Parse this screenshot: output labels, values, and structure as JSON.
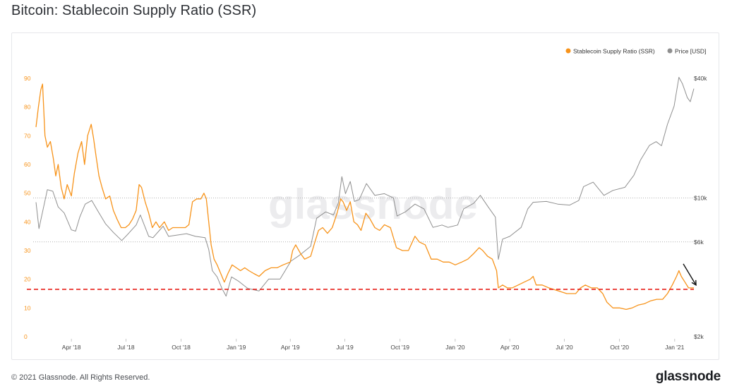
{
  "page": {
    "title": "Bitcoin: Stablecoin Supply Ratio (SSR)",
    "copyright": "© 2021 Glassnode. All Rights Reserved.",
    "brand": "glassnode",
    "watermark": "glassnode"
  },
  "colors": {
    "ssr": "#f7931a",
    "price": "#8f8f8f",
    "annotation_line": "#e8201a",
    "arrow": "#111111",
    "grid_dotted": "#999999",
    "left_tick_text": "#f7931a",
    "right_tick_text": "#444444"
  },
  "chart_data": {
    "type": "line",
    "title": "Bitcoin: Stablecoin Supply Ratio (SSR)",
    "xlabel": "",
    "ylabel_left": "",
    "ylabel_right": "",
    "x_range": [
      "2018-02-01",
      "2021-02-02"
    ],
    "x_ticks": [
      "Apr '18",
      "Jul '18",
      "Oct '18",
      "Jan '19",
      "Apr '19",
      "Jul '19",
      "Oct '19",
      "Jan '20",
      "Apr '20",
      "Jul '20",
      "Oct '20",
      "Jan '21"
    ],
    "y_left": {
      "ticks": [
        0,
        10,
        20,
        30,
        40,
        50,
        60,
        70,
        80,
        90
      ],
      "ylim": [
        0,
        90
      ]
    },
    "y_right": {
      "ticks": [
        "$2k",
        "$6k",
        "$10k",
        "$40k"
      ],
      "ylim": [
        2000,
        40000
      ],
      "scale": "log"
    },
    "legend": {
      "position": "top-right",
      "entries": [
        "Stablecoin Supply Ratio (SSR)",
        "Price [USD]"
      ]
    },
    "grid": "dotted horizontal reference lines",
    "annotations": [
      {
        "type": "horizontal dashed line",
        "axis": "left",
        "value": 16.5,
        "color": "red"
      },
      {
        "type": "arrow",
        "pointing_to": "latest SSR value"
      }
    ],
    "series": [
      {
        "name": "Stablecoin Supply Ratio (SSR)",
        "axis": "left",
        "points": [
          [
            "2018-02-01",
            73
          ],
          [
            "2018-02-05",
            80
          ],
          [
            "2018-02-09",
            86
          ],
          [
            "2018-02-12",
            88
          ],
          [
            "2018-02-16",
            70
          ],
          [
            "2018-02-20",
            66
          ],
          [
            "2018-02-25",
            68
          ],
          [
            "2018-03-02",
            62
          ],
          [
            "2018-03-06",
            56
          ],
          [
            "2018-03-10",
            60
          ],
          [
            "2018-03-15",
            52
          ],
          [
            "2018-03-20",
            48
          ],
          [
            "2018-03-25",
            53
          ],
          [
            "2018-04-01",
            49
          ],
          [
            "2018-04-06",
            57
          ],
          [
            "2018-04-12",
            64
          ],
          [
            "2018-04-18",
            68
          ],
          [
            "2018-04-23",
            60
          ],
          [
            "2018-04-28",
            70
          ],
          [
            "2018-05-04",
            74
          ],
          [
            "2018-05-08",
            69
          ],
          [
            "2018-05-12",
            63
          ],
          [
            "2018-05-17",
            56
          ],
          [
            "2018-05-22",
            52
          ],
          [
            "2018-05-28",
            48
          ],
          [
            "2018-06-04",
            49
          ],
          [
            "2018-06-10",
            44
          ],
          [
            "2018-06-16",
            41
          ],
          [
            "2018-06-23",
            38
          ],
          [
            "2018-06-30",
            38
          ],
          [
            "2018-07-06",
            39
          ],
          [
            "2018-07-12",
            41
          ],
          [
            "2018-07-18",
            44
          ],
          [
            "2018-07-23",
            53
          ],
          [
            "2018-07-27",
            52
          ],
          [
            "2018-08-02",
            47
          ],
          [
            "2018-08-08",
            43
          ],
          [
            "2018-08-14",
            38
          ],
          [
            "2018-08-20",
            40
          ],
          [
            "2018-08-26",
            38
          ],
          [
            "2018-09-03",
            40
          ],
          [
            "2018-09-10",
            37
          ],
          [
            "2018-09-17",
            38
          ],
          [
            "2018-09-24",
            38
          ],
          [
            "2018-10-01",
            38
          ],
          [
            "2018-10-08",
            38
          ],
          [
            "2018-10-14",
            39
          ],
          [
            "2018-10-20",
            47
          ],
          [
            "2018-10-27",
            48
          ],
          [
            "2018-11-03",
            48
          ],
          [
            "2018-11-08",
            50
          ],
          [
            "2018-11-12",
            48
          ],
          [
            "2018-11-16",
            40
          ],
          [
            "2018-11-20",
            32
          ],
          [
            "2018-11-25",
            27
          ],
          [
            "2018-11-30",
            25
          ],
          [
            "2018-12-06",
            22
          ],
          [
            "2018-12-12",
            19
          ],
          [
            "2018-12-18",
            22
          ],
          [
            "2018-12-25",
            25
          ],
          [
            "2019-01-01",
            24
          ],
          [
            "2019-01-08",
            23
          ],
          [
            "2019-01-15",
            24
          ],
          [
            "2019-01-22",
            23
          ],
          [
            "2019-01-30",
            22
          ],
          [
            "2019-02-08",
            21
          ],
          [
            "2019-02-18",
            23
          ],
          [
            "2019-02-28",
            24
          ],
          [
            "2019-03-10",
            24
          ],
          [
            "2019-03-20",
            25
          ],
          [
            "2019-04-01",
            26
          ],
          [
            "2019-04-05",
            30
          ],
          [
            "2019-04-10",
            32
          ],
          [
            "2019-04-18",
            29
          ],
          [
            "2019-04-25",
            27
          ],
          [
            "2019-05-05",
            28
          ],
          [
            "2019-05-12",
            33
          ],
          [
            "2019-05-18",
            37
          ],
          [
            "2019-05-25",
            38
          ],
          [
            "2019-06-02",
            36
          ],
          [
            "2019-06-10",
            38
          ],
          [
            "2019-06-18",
            43
          ],
          [
            "2019-06-24",
            48
          ],
          [
            "2019-06-28",
            47
          ],
          [
            "2019-07-04",
            44
          ],
          [
            "2019-07-10",
            47
          ],
          [
            "2019-07-16",
            40
          ],
          [
            "2019-07-22",
            39
          ],
          [
            "2019-07-28",
            37
          ],
          [
            "2019-08-05",
            43
          ],
          [
            "2019-08-12",
            41
          ],
          [
            "2019-08-20",
            38
          ],
          [
            "2019-08-28",
            37
          ],
          [
            "2019-09-05",
            39
          ],
          [
            "2019-09-15",
            38
          ],
          [
            "2019-09-25",
            31
          ],
          [
            "2019-10-05",
            30
          ],
          [
            "2019-10-15",
            30
          ],
          [
            "2019-10-26",
            35
          ],
          [
            "2019-11-02",
            33
          ],
          [
            "2019-11-12",
            32
          ],
          [
            "2019-11-22",
            27
          ],
          [
            "2019-12-02",
            27
          ],
          [
            "2019-12-12",
            26
          ],
          [
            "2019-12-22",
            26
          ],
          [
            "2020-01-01",
            25
          ],
          [
            "2020-01-12",
            26
          ],
          [
            "2020-01-22",
            27
          ],
          [
            "2020-02-01",
            29
          ],
          [
            "2020-02-10",
            31
          ],
          [
            "2020-02-16",
            30
          ],
          [
            "2020-02-24",
            28
          ],
          [
            "2020-03-03",
            27
          ],
          [
            "2020-03-10",
            23
          ],
          [
            "2020-03-13",
            17
          ],
          [
            "2020-03-20",
            18
          ],
          [
            "2020-03-28",
            17
          ],
          [
            "2020-04-05",
            17
          ],
          [
            "2020-04-15",
            18
          ],
          [
            "2020-04-25",
            19
          ],
          [
            "2020-05-05",
            20
          ],
          [
            "2020-05-10",
            21
          ],
          [
            "2020-05-15",
            18
          ],
          [
            "2020-05-25",
            18
          ],
          [
            "2020-06-05",
            17
          ],
          [
            "2020-06-20",
            16
          ],
          [
            "2020-07-05",
            15
          ],
          [
            "2020-07-20",
            15
          ],
          [
            "2020-07-28",
            17
          ],
          [
            "2020-08-05",
            18
          ],
          [
            "2020-08-15",
            17
          ],
          [
            "2020-08-25",
            17
          ],
          [
            "2020-09-03",
            15
          ],
          [
            "2020-09-10",
            12
          ],
          [
            "2020-09-20",
            10
          ],
          [
            "2020-10-01",
            10
          ],
          [
            "2020-10-12",
            9.5
          ],
          [
            "2020-10-22",
            10
          ],
          [
            "2020-11-01",
            11
          ],
          [
            "2020-11-12",
            11.5
          ],
          [
            "2020-11-22",
            12.5
          ],
          [
            "2020-12-02",
            13
          ],
          [
            "2020-12-12",
            13
          ],
          [
            "2020-12-20",
            15
          ],
          [
            "2020-12-28",
            18
          ],
          [
            "2021-01-04",
            21
          ],
          [
            "2021-01-08",
            23
          ],
          [
            "2021-01-12",
            21
          ],
          [
            "2021-01-18",
            19
          ],
          [
            "2021-01-24",
            17
          ],
          [
            "2021-02-02",
            17
          ]
        ]
      },
      {
        "name": "Price [USD]",
        "axis": "right",
        "points": [
          [
            "2018-02-01",
            9500
          ],
          [
            "2018-02-06",
            7000
          ],
          [
            "2018-02-12",
            8500
          ],
          [
            "2018-02-20",
            11000
          ],
          [
            "2018-03-01",
            10800
          ],
          [
            "2018-03-10",
            9000
          ],
          [
            "2018-03-20",
            8400
          ],
          [
            "2018-04-01",
            6900
          ],
          [
            "2018-04-08",
            6800
          ],
          [
            "2018-04-15",
            8000
          ],
          [
            "2018-04-24",
            9300
          ],
          [
            "2018-05-05",
            9700
          ],
          [
            "2018-05-15",
            8600
          ],
          [
            "2018-05-28",
            7400
          ],
          [
            "2018-06-10",
            6700
          ],
          [
            "2018-06-24",
            6100
          ],
          [
            "2018-07-05",
            6600
          ],
          [
            "2018-07-18",
            7300
          ],
          [
            "2018-07-25",
            8200
          ],
          [
            "2018-08-08",
            6400
          ],
          [
            "2018-08-15",
            6300
          ],
          [
            "2018-09-01",
            7200
          ],
          [
            "2018-09-10",
            6400
          ],
          [
            "2018-09-25",
            6500
          ],
          [
            "2018-10-10",
            6600
          ],
          [
            "2018-10-25",
            6400
          ],
          [
            "2018-11-10",
            6300
          ],
          [
            "2018-11-16",
            5500
          ],
          [
            "2018-11-22",
            4300
          ],
          [
            "2018-11-30",
            4000
          ],
          [
            "2018-12-08",
            3500
          ],
          [
            "2018-12-15",
            3200
          ],
          [
            "2018-12-24",
            4000
          ],
          [
            "2019-01-05",
            3800
          ],
          [
            "2019-01-20",
            3500
          ],
          [
            "2019-02-08",
            3400
          ],
          [
            "2019-02-24",
            3900
          ],
          [
            "2019-03-15",
            3900
          ],
          [
            "2019-04-02",
            4800
          ],
          [
            "2019-04-15",
            5100
          ],
          [
            "2019-05-05",
            5700
          ],
          [
            "2019-05-15",
            7900
          ],
          [
            "2019-05-30",
            8500
          ],
          [
            "2019-06-12",
            8200
          ],
          [
            "2019-06-20",
            9400
          ],
          [
            "2019-06-26",
            12800
          ],
          [
            "2019-07-02",
            10500
          ],
          [
            "2019-07-10",
            12100
          ],
          [
            "2019-07-17",
            9600
          ],
          [
            "2019-07-25",
            9800
          ],
          [
            "2019-08-06",
            11800
          ],
          [
            "2019-08-20",
            10300
          ],
          [
            "2019-09-05",
            10500
          ],
          [
            "2019-09-20",
            10000
          ],
          [
            "2019-09-26",
            8100
          ],
          [
            "2019-10-10",
            8500
          ],
          [
            "2019-10-26",
            9300
          ],
          [
            "2019-11-10",
            8800
          ],
          [
            "2019-11-25",
            7100
          ],
          [
            "2019-12-10",
            7300
          ],
          [
            "2019-12-20",
            7100
          ],
          [
            "2020-01-05",
            7300
          ],
          [
            "2020-01-15",
            8800
          ],
          [
            "2020-02-01",
            9400
          ],
          [
            "2020-02-12",
            10300
          ],
          [
            "2020-02-25",
            9000
          ],
          [
            "2020-03-08",
            8000
          ],
          [
            "2020-03-13",
            4900
          ],
          [
            "2020-03-20",
            6200
          ],
          [
            "2020-04-01",
            6400
          ],
          [
            "2020-04-20",
            7100
          ],
          [
            "2020-05-01",
            8800
          ],
          [
            "2020-05-10",
            9500
          ],
          [
            "2020-06-01",
            9600
          ],
          [
            "2020-06-20",
            9300
          ],
          [
            "2020-07-10",
            9200
          ],
          [
            "2020-07-25",
            9700
          ],
          [
            "2020-08-02",
            11400
          ],
          [
            "2020-08-18",
            12000
          ],
          [
            "2020-09-05",
            10300
          ],
          [
            "2020-09-20",
            10900
          ],
          [
            "2020-10-10",
            11300
          ],
          [
            "2020-10-25",
            13000
          ],
          [
            "2020-11-05",
            15500
          ],
          [
            "2020-11-20",
            18400
          ],
          [
            "2020-12-01",
            19200
          ],
          [
            "2020-12-10",
            18300
          ],
          [
            "2020-12-20",
            23500
          ],
          [
            "2020-12-31",
            29000
          ],
          [
            "2021-01-08",
            40500
          ],
          [
            "2021-01-14",
            37500
          ],
          [
            "2021-01-22",
            32000
          ],
          [
            "2021-01-27",
            30500
          ],
          [
            "2021-02-02",
            35500
          ]
        ]
      }
    ]
  }
}
